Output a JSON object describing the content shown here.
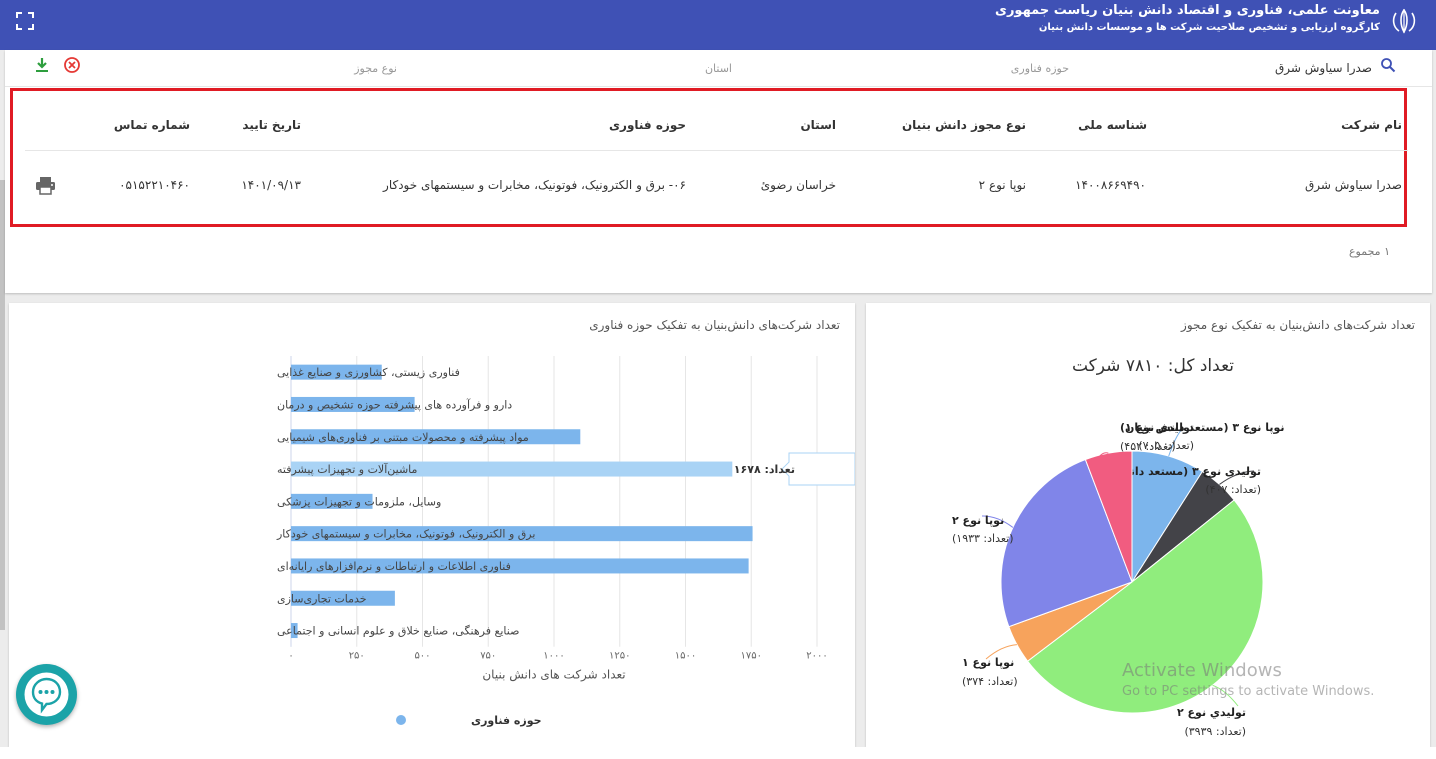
{
  "header": {
    "title": "معاونت علمی، فناوری و اقتصاد دانش بنیان ریاست جمهوری",
    "subtitle": "کارگروه ارزیابی و تشخیص صلاحیت شرکت ها و موسسات دانش بنیان",
    "bg_color": "#3f51b5"
  },
  "filters": {
    "company_value": "صدرا سیاوش شرق",
    "tech_domain_placeholder": "حوزه فناوری",
    "province_placeholder": "استان",
    "license_type_placeholder": "نوع مجوز"
  },
  "table": {
    "headers": {
      "company_name": "نام شرکت",
      "national_id": "شناسه ملی",
      "license_type": "نوع مجوز دانش بنیان",
      "province": "استان",
      "tech_domain": "حوزه فناوری",
      "approval_date": "تاریخ تایید",
      "phone": "شماره تماس"
    },
    "rows": [
      {
        "company_name": "صدرا سیاوش شرق",
        "national_id": "۱۴۰۰۸۶۶۹۴۹۰",
        "license_type": "نوپا نوع ۲",
        "province": "خراسان رضوئ",
        "tech_domain": "۰۶- برق و الکترونیک، فوتونیک، مخابرات و سیستمهای خودکار",
        "approval_date": "۱۴۰۱/۰۹/۱۳",
        "phone": "۰۵۱۵۲۲۱۰۴۶۰"
      }
    ],
    "total": "۱ مجموع"
  },
  "bar_chart_card": {
    "title": "تعداد شرکت‌های دانش‌بنیان به تفکیک حوزه فناوری",
    "tooltip_text": "تعداد: ۱۶۷۸"
  },
  "pie_chart_card": {
    "title": "تعداد شرکت‌های دانش‌بنیان به تفکیک نوع مجوز",
    "total_label": "تعداد کل: ۷۸۱۰ شرکت"
  },
  "chart_data": [
    {
      "type": "bar",
      "orientation": "horizontal",
      "categories": [
        "فناوری زیستی، کشاورزی و صنایع غذایی",
        "دارو و فرآورده های پیشرفته حوزه تشخیص و درمان",
        "مواد پیشرفته و محصولات مبتنی بر فناوری‌های شیمیایی",
        "ماشین‌آلات و تجهیزات پیشرفته",
        "وسایل، ملزومات و تجهیزات پزشکی",
        "برق و الکترونیک، فوتونیک، مخابرات و سیستمهای خودکار",
        "فناوری اطلاعات و ارتباطات و نرم‌افزارهای رایانه‌ای",
        "خدمات تجاری‌سازی",
        "صنایع فرهنگی، صنایع خلاق و علوم انسانی و اجتماعی"
      ],
      "series": [
        {
          "name": "حوزه فناوری",
          "values": [
            345,
            470,
            1100,
            1678,
            310,
            1755,
            1740,
            395,
            25
          ],
          "color": "#7cb5ec"
        }
      ],
      "highlighted_index": 3,
      "highlight_color": "#a9d3f5",
      "xlabel": "تعداد شرکت های دانش بنیان",
      "xlim": [
        0,
        2000
      ],
      "xticks": [
        0,
        250,
        500,
        750,
        1000,
        1250,
        1500,
        1750,
        2000
      ],
      "xtick_labels": [
        "۰",
        "۲۵۰",
        "۵۰۰",
        "۷۵۰",
        "۱۰۰۰",
        "۱۲۵۰",
        "۱۵۰۰",
        "۱۷۵۰",
        "۲۰۰۰"
      ],
      "grid": true,
      "legend": "bottom"
    },
    {
      "type": "pie",
      "title": "تعداد کل: ۷۸۱۰ شرکت",
      "slices": [
        {
          "name": "تولیدی نوع ۱",
          "value": 705,
          "label_count": "(تعداد: ۷۰۵)",
          "color": "#7cb5ec"
        },
        {
          "name": "تولیدی نوع ۳ (مستعد دانش بنیان)",
          "value": 407,
          "label_count": "(تعداد: ۴۰۷)",
          "color": "#434348"
        },
        {
          "name": "توليدي نوع ۲",
          "value": 3939,
          "label_count": "(تعداد: ۳۹۳۹)",
          "color": "#90ed7d"
        },
        {
          "name": "نوپا نوع ۱",
          "value": 374,
          "label_count": "(تعداد: ۳۷۴)",
          "color": "#f7a35c"
        },
        {
          "name": "نوپا نوع ۲",
          "value": 1933,
          "label_count": "(تعداد: ۱۹۳۳)",
          "color": "#8085e9"
        },
        {
          "name": "نوپا نوع ۳ (مستعد دانش بنیان)",
          "value": 452,
          "label_count": "(تعداد: ۴۵۲)",
          "color": "#f15c80"
        }
      ],
      "legend": "none"
    }
  ],
  "watermark": {
    "line1": "Activate Windows",
    "line2": "Go to PC settings to activate Windows."
  }
}
